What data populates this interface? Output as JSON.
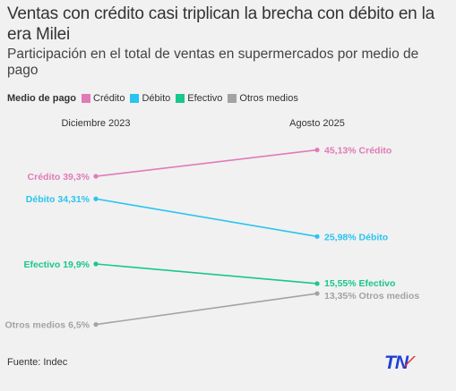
{
  "title": "Ventas con crédito casi triplican la brecha con débito en la era Milei",
  "subtitle": "Participación en el total de ventas en supermercados por medio de pago",
  "legend": {
    "title": "Medio de pago",
    "items": [
      {
        "label": "Crédito",
        "color": "#e07bb7"
      },
      {
        "label": "Débito",
        "color": "#29c4f0"
      },
      {
        "label": "Efectivo",
        "color": "#19c68e"
      },
      {
        "label": "Otros medios",
        "color": "#a3a3a3"
      }
    ]
  },
  "source": "Fuente: Indec",
  "logo_text": "TN",
  "colors": {
    "logo_blue": "#1e3fd6",
    "logo_red": "#e32d2d"
  },
  "chart_data": {
    "type": "line",
    "x": [
      "Diciembre 2023",
      "Agosto 2025"
    ],
    "series": [
      {
        "name": "Crédito",
        "values": [
          39.3,
          45.13
        ],
        "color": "#e07bb7",
        "start_label": "Crédito 39,3%",
        "end_label": "45,13% Crédito"
      },
      {
        "name": "Débito",
        "values": [
          34.31,
          25.98
        ],
        "color": "#29c4f0",
        "start_label": "Débito 34,31%",
        "end_label": "25,98% Débito"
      },
      {
        "name": "Efectivo",
        "values": [
          19.9,
          15.55
        ],
        "color": "#19c68e",
        "start_label": "Efectivo 19,9%",
        "end_label": "15,55% Efectivo"
      },
      {
        "name": "Otros medios",
        "values": [
          6.5,
          13.35
        ],
        "color": "#a3a3a3",
        "start_label": "Otros medios 6,5%",
        "end_label": "13,35% Otros medios"
      }
    ]
  }
}
